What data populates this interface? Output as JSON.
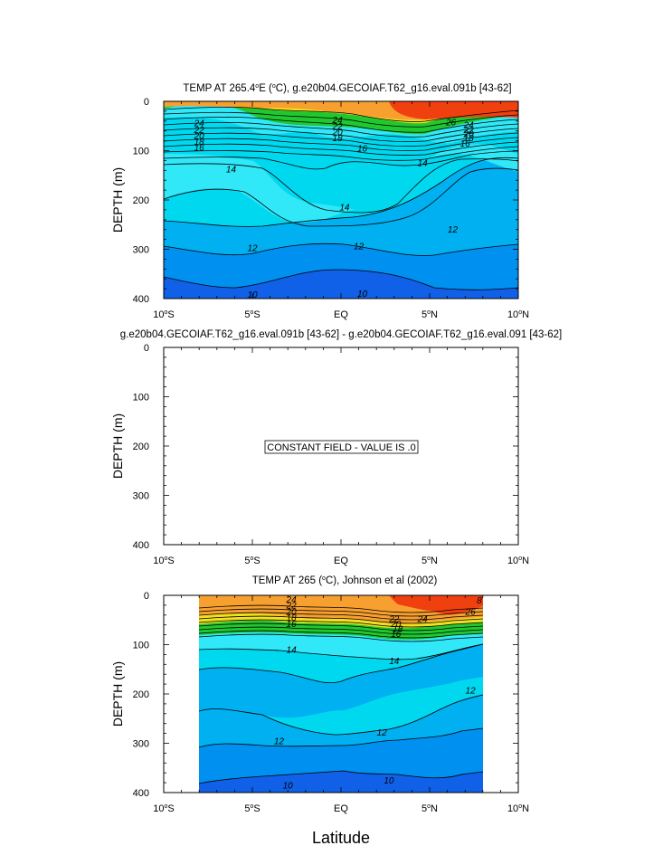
{
  "figure": {
    "xlabel": "Latitude",
    "colors": {
      "orange": "#F7A030",
      "red": "#F04010",
      "yellow": "#F0E020",
      "green": "#20C830",
      "cyan_light": "#30E8F8",
      "cyan": "#00D8F0",
      "blue_mid": "#00B0F0",
      "blue": "#0090F0",
      "blue_deep": "#1060E8",
      "contour": "#000000"
    }
  },
  "chart_data": [
    {
      "type": "contour",
      "title_main": "TEMP AT 265.4",
      "title_sup": "o",
      "title_rest": "E (",
      "title_sup2": "o",
      "title_tail": "C), g.e20b04.GECOIAF.T62_g16.eval.091b [43-62]",
      "ylabel": "DEPTH (m)",
      "xlim": [
        -10,
        10
      ],
      "ylim": [
        0,
        400
      ],
      "xticks": [
        {
          "v": -10,
          "num": "10",
          "deg": "o",
          "hem": "S"
        },
        {
          "v": -5,
          "num": "5",
          "deg": "o",
          "hem": "S"
        },
        {
          "v": 0,
          "num": "EQ",
          "deg": "",
          "hem": ""
        },
        {
          "v": 5,
          "num": "5",
          "deg": "o",
          "hem": "N"
        },
        {
          "v": 10,
          "num": "10",
          "deg": "o",
          "hem": "N"
        }
      ],
      "yticks": [
        "0",
        "100",
        "200",
        "300",
        "400"
      ],
      "contour_labels": [
        {
          "text": "24",
          "lat": -8.0,
          "depth": 44
        },
        {
          "text": "22",
          "lat": -8.0,
          "depth": 58
        },
        {
          "text": "20",
          "lat": -8.0,
          "depth": 70
        },
        {
          "text": "18",
          "lat": -8.0,
          "depth": 82
        },
        {
          "text": "16",
          "lat": -8.0,
          "depth": 94
        },
        {
          "text": "24",
          "lat": -0.2,
          "depth": 38
        },
        {
          "text": "22",
          "lat": -0.2,
          "depth": 50
        },
        {
          "text": "20",
          "lat": -0.2,
          "depth": 62
        },
        {
          "text": "18",
          "lat": -0.2,
          "depth": 74
        },
        {
          "text": "16",
          "lat": 1.2,
          "depth": 95
        },
        {
          "text": "26",
          "lat": 6.2,
          "depth": 42
        },
        {
          "text": "24",
          "lat": 7.2,
          "depth": 48
        },
        {
          "text": "22",
          "lat": 7.2,
          "depth": 58
        },
        {
          "text": "20",
          "lat": 7.2,
          "depth": 66
        },
        {
          "text": "18",
          "lat": 7.2,
          "depth": 74
        },
        {
          "text": "16",
          "lat": 7.0,
          "depth": 85
        },
        {
          "text": "14",
          "lat": -6.2,
          "depth": 138
        },
        {
          "text": "14",
          "lat": 0.2,
          "depth": 215
        },
        {
          "text": "14",
          "lat": 4.6,
          "depth": 125
        },
        {
          "text": "12",
          "lat": -5.0,
          "depth": 297
        },
        {
          "text": "12",
          "lat": 1.0,
          "depth": 294
        },
        {
          "text": "12",
          "lat": 6.3,
          "depth": 260
        },
        {
          "text": "10",
          "lat": -5.0,
          "depth": 392
        },
        {
          "text": "10",
          "lat": 1.2,
          "depth": 390
        }
      ]
    },
    {
      "type": "contour",
      "title_main": "g.e20b04.GECOIAF.T62_g16.eval.091b [43-62] - g.e20b04.GECOIAF.T62_g16.eval.091 [43-62]",
      "ylabel": "DEPTH (m)",
      "xlim": [
        -10,
        10
      ],
      "ylim": [
        0,
        400
      ],
      "xticks": [
        {
          "v": -10,
          "num": "10",
          "deg": "o",
          "hem": "S"
        },
        {
          "v": -5,
          "num": "5",
          "deg": "o",
          "hem": "S"
        },
        {
          "v": 0,
          "num": "EQ",
          "deg": "",
          "hem": ""
        },
        {
          "v": 5,
          "num": "5",
          "deg": "o",
          "hem": "N"
        },
        {
          "v": 10,
          "num": "10",
          "deg": "o",
          "hem": "N"
        }
      ],
      "yticks": [
        "0",
        "100",
        "200",
        "300",
        "400"
      ],
      "annotation": "CONSTANT FIELD - VALUE IS .0"
    },
    {
      "type": "contour",
      "title_main": "TEMP AT 265 (",
      "title_sup": "o",
      "title_rest": "C), Johnson et al (2002)",
      "ylabel": "DEPTH (m)",
      "xlim": [
        -10,
        10
      ],
      "ylim": [
        0,
        400
      ],
      "data_xlim": [
        -8,
        8
      ],
      "xticks": [
        {
          "v": -10,
          "num": "10",
          "deg": "o",
          "hem": "S"
        },
        {
          "v": -5,
          "num": "5",
          "deg": "o",
          "hem": "S"
        },
        {
          "v": 0,
          "num": "EQ",
          "deg": "",
          "hem": ""
        },
        {
          "v": 5,
          "num": "5",
          "deg": "o",
          "hem": "N"
        },
        {
          "v": 10,
          "num": "10",
          "deg": "o",
          "hem": "N"
        }
      ],
      "yticks": [
        "0",
        "100",
        "200",
        "300",
        "400"
      ],
      "contour_labels": [
        {
          "text": "24",
          "lat": -2.8,
          "depth": 8
        },
        {
          "text": "22",
          "lat": -2.8,
          "depth": 20
        },
        {
          "text": "20",
          "lat": -2.8,
          "depth": 33
        },
        {
          "text": "18",
          "lat": -2.8,
          "depth": 45
        },
        {
          "text": "16",
          "lat": -2.8,
          "depth": 58
        },
        {
          "text": "22",
          "lat": 3.0,
          "depth": 48
        },
        {
          "text": "20",
          "lat": 3.1,
          "depth": 58
        },
        {
          "text": "18",
          "lat": 3.2,
          "depth": 68
        },
        {
          "text": "16",
          "lat": 3.1,
          "depth": 78
        },
        {
          "text": "24",
          "lat": 4.6,
          "depth": 48
        },
        {
          "text": "26",
          "lat": 7.3,
          "depth": 33
        },
        {
          "text": "8",
          "lat": 7.8,
          "depth": 10
        },
        {
          "text": "14",
          "lat": -2.8,
          "depth": 110
        },
        {
          "text": "14",
          "lat": 3.0,
          "depth": 133
        },
        {
          "text": "12",
          "lat": 7.3,
          "depth": 193
        },
        {
          "text": "12",
          "lat": -3.5,
          "depth": 295
        },
        {
          "text": "12",
          "lat": 2.3,
          "depth": 278
        },
        {
          "text": "10",
          "lat": 2.7,
          "depth": 375
        },
        {
          "text": "10",
          "lat": -3.0,
          "depth": 385
        }
      ]
    }
  ]
}
